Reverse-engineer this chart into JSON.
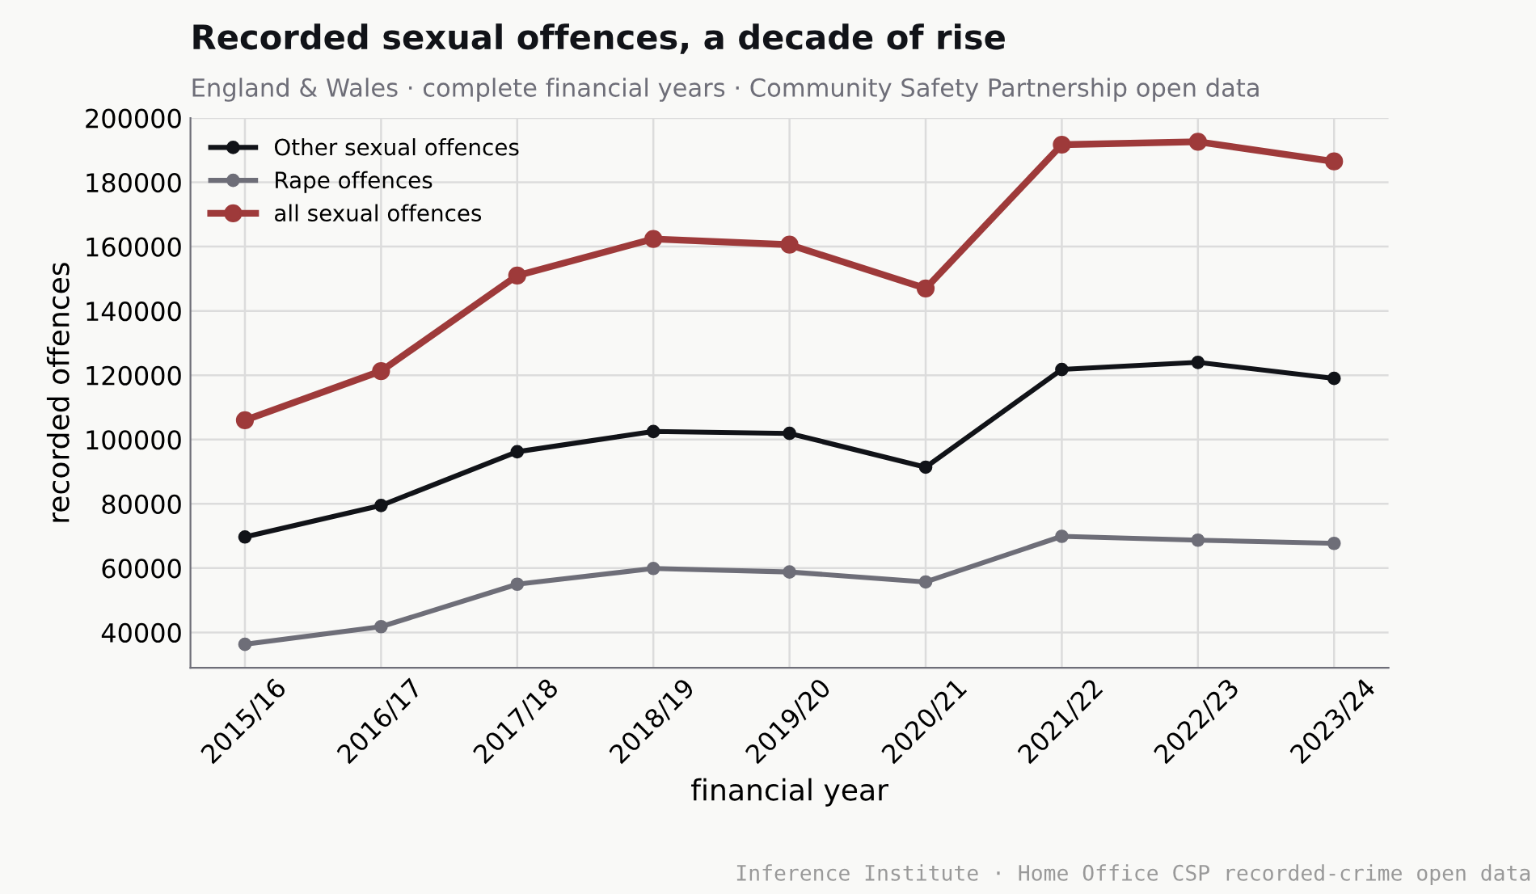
{
  "chart_data": {
    "type": "line",
    "title": "Recorded sexual offences, a decade of rise",
    "subtitle": "England & Wales · complete financial years · Community Safety Partnership open data",
    "xlabel": "financial year",
    "ylabel": "recorded offences",
    "categories": [
      "2015/16",
      "2016/17",
      "2017/18",
      "2018/19",
      "2019/20",
      "2020/21",
      "2021/22",
      "2022/23",
      "2023/24"
    ],
    "series": [
      {
        "name": "Other sexual offences",
        "color": "#111318",
        "values": [
          69700,
          79500,
          96200,
          102500,
          101900,
          91400,
          121800,
          124000,
          119000
        ]
      },
      {
        "name": "Rape offences",
        "color": "#6e6e78",
        "values": [
          36300,
          41800,
          55000,
          59900,
          58800,
          55700,
          69900,
          68700,
          67700
        ]
      },
      {
        "name": "all sexual offences",
        "color": "#9e3a3a",
        "values": [
          106000,
          121300,
          151000,
          162400,
          160600,
          147000,
          191700,
          192600,
          186500
        ]
      }
    ],
    "ylim": [
      29000,
      200000
    ],
    "yticks": [
      40000,
      60000,
      80000,
      100000,
      120000,
      140000,
      160000,
      180000,
      200000
    ],
    "grid": true,
    "legend": "top left",
    "marker": "circle",
    "line_style": "solid",
    "annotations": [
      "Inference Institute · Home Office CSP recorded-crime open data"
    ]
  }
}
